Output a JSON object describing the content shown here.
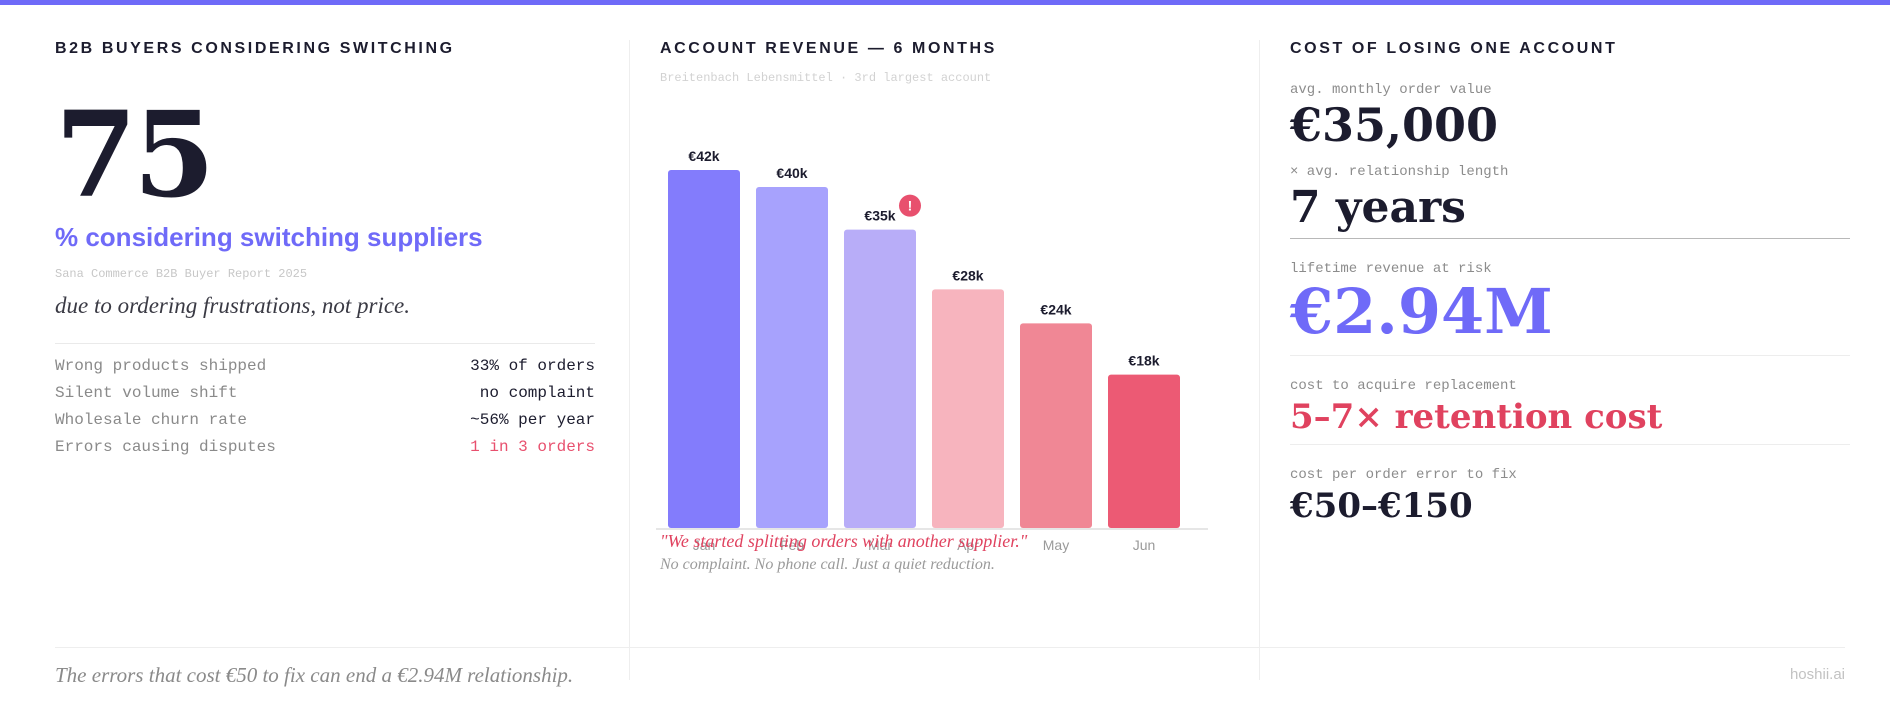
{
  "colors": {
    "accent": "#6f6af8",
    "alert": "#e0425f",
    "bar_colors": [
      "#837cfc",
      "#a7a2fd",
      "#b8adf8",
      "#f7b4be",
      "#f08795",
      "#ec5a74"
    ],
    "badge": "#e8506e"
  },
  "panel1": {
    "title": "B2B BUYERS CONSIDERING SWITCHING",
    "big_number": "75",
    "big_subtitle": "% considering switching suppliers",
    "source": "Sana Commerce B2B Buyer Report 2025",
    "tagline": "due to ordering frustrations, not price.",
    "stats": [
      {
        "label": "Wrong products shipped",
        "value": "33% of orders",
        "alert": false
      },
      {
        "label": "Silent volume shift",
        "value": "no complaint",
        "alert": false
      },
      {
        "label": "Wholesale churn rate",
        "value": "~56% per year",
        "alert": false
      },
      {
        "label": "Errors causing disputes",
        "value": "1 in 3 orders",
        "alert": true
      }
    ]
  },
  "panel2": {
    "title": "ACCOUNT REVENUE — 6 MONTHS",
    "subtitle": "Breitenbach Lebensmittel · 3rd largest account",
    "quote": "\"We started splitting orders with another supplier.\"",
    "quote_sub": "No complaint. No phone call. Just a quiet reduction."
  },
  "chart_data": {
    "type": "bar",
    "title": "ACCOUNT REVENUE — 6 MONTHS",
    "subtitle": "Breitenbach Lebensmittel · 3rd largest account",
    "categories": [
      "Jan",
      "Feb",
      "Mar",
      "Apr",
      "May",
      "Jun"
    ],
    "values": [
      42,
      40,
      35,
      28,
      24,
      18
    ],
    "value_labels": [
      "€42k",
      "€40k",
      "€35k",
      "€28k",
      "€24k",
      "€18k"
    ],
    "unit": "€k",
    "ylim": [
      0,
      42
    ],
    "grid": false,
    "annotations": [
      {
        "category": "Mar",
        "text": "!"
      }
    ]
  },
  "panel3": {
    "title": "COST OF LOSING ONE ACCOUNT",
    "rows": [
      {
        "label": "avg. monthly order value",
        "value": "€35,000"
      },
      {
        "label": "× avg. relationship length",
        "value": "7 years"
      },
      {
        "label": "lifetime revenue at risk",
        "value": "€2.94M"
      },
      {
        "label": "cost to acquire replacement",
        "value": "5–7× retention cost"
      },
      {
        "label": "cost per order error to fix",
        "value": "€50–€150"
      }
    ]
  },
  "footer": {
    "quote": "The errors that cost €50 to fix can end a €2.94M relationship.",
    "brand": "hoshii.ai"
  }
}
